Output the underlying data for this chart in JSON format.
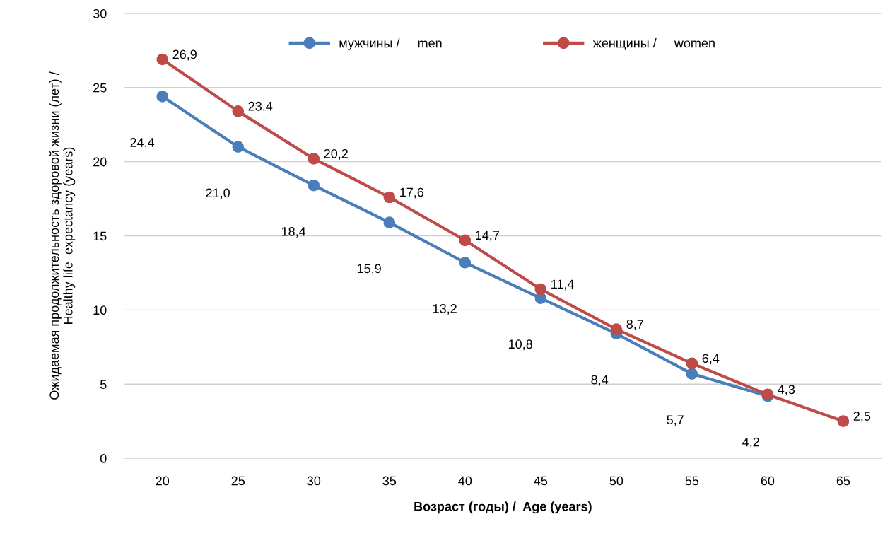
{
  "chart_data": {
    "type": "line",
    "xlabel": "Возраст (годы) /  Age (years)",
    "ylabel": "Ожидаемая продолжительность здоровой жизни (лет) /\nHealthy life  expectancy (years)",
    "categories": [
      "20",
      "25",
      "30",
      "35",
      "40",
      "45",
      "50",
      "55",
      "60",
      "65"
    ],
    "series": [
      {
        "name": "мужчины /     men",
        "color": "#4a7ebb",
        "values": [
          24.4,
          21.0,
          18.4,
          15.9,
          13.2,
          10.8,
          8.4,
          5.7,
          4.2,
          null
        ],
        "value_labels": [
          "24,4",
          "21,0",
          "18,4",
          "15,9",
          "13,2",
          "10,8",
          "8,4",
          "5,7",
          "4,2",
          null
        ]
      },
      {
        "name": "женщины /     women",
        "color": "#be4b48",
        "values": [
          26.9,
          23.4,
          20.2,
          17.6,
          14.7,
          11.4,
          8.7,
          6.4,
          4.3,
          2.5
        ],
        "value_labels": [
          "26,9",
          "23,4",
          "20,2",
          "17,6",
          "14,7",
          "11,4",
          "8,7",
          "6,4",
          "4,3",
          "2,5"
        ]
      }
    ],
    "ylim": [
      0,
      30
    ],
    "yticks": [
      0,
      5,
      10,
      15,
      20,
      25,
      30
    ],
    "grid": "y",
    "legend": "top",
    "marker": "circle",
    "line_style": "solid"
  }
}
